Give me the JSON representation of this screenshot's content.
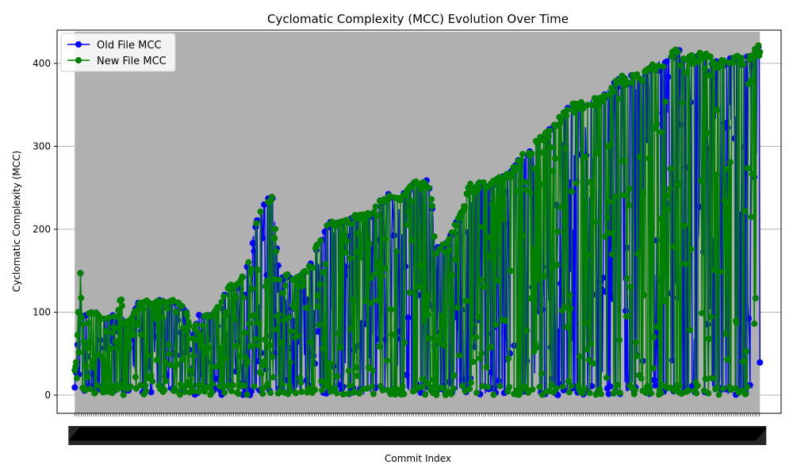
{
  "chart_data": {
    "type": "line",
    "title": "Cyclomatic Complexity (MCC) Evolution Over Time",
    "xlabel": "Commit Index",
    "ylabel": "Cyclomatic Complexity (MCC)",
    "ylim": [
      -22,
      440
    ],
    "xlim": [
      -25,
      1000
    ],
    "y_ticks": [
      0,
      100,
      200,
      300,
      400
    ],
    "grid": "y-axis",
    "legend_position": "top-left",
    "commit_count": 971,
    "series": [
      {
        "name": "Old File MCC",
        "color": "#0000ff",
        "marker": "circle",
        "max_envelope": [
          [
            0,
            30
          ],
          [
            3,
            45
          ],
          [
            6,
            130
          ],
          [
            8,
            148
          ],
          [
            10,
            96
          ],
          [
            20,
            100
          ],
          [
            30,
            102
          ],
          [
            35,
            95
          ],
          [
            45,
            92
          ],
          [
            55,
            97
          ],
          [
            60,
            90
          ],
          [
            65,
            124
          ],
          [
            70,
            88
          ],
          [
            80,
            92
          ],
          [
            90,
            112
          ],
          [
            100,
            115
          ],
          [
            110,
            110
          ],
          [
            120,
            115
          ],
          [
            130,
            112
          ],
          [
            140,
            115
          ],
          [
            150,
            112
          ],
          [
            160,
            97
          ],
          [
            165,
            65
          ],
          [
            175,
            97
          ],
          [
            185,
            97
          ],
          [
            195,
            97
          ],
          [
            205,
            110
          ],
          [
            215,
            128
          ],
          [
            220,
            133
          ],
          [
            230,
            133
          ],
          [
            240,
            148
          ],
          [
            245,
            160
          ],
          [
            250,
            180
          ],
          [
            255,
            200
          ],
          [
            260,
            220
          ],
          [
            265,
            225
          ],
          [
            270,
            235
          ],
          [
            280,
            242
          ],
          [
            290,
            140
          ],
          [
            300,
            148
          ],
          [
            310,
            140
          ],
          [
            320,
            146
          ],
          [
            330,
            155
          ],
          [
            340,
            175
          ],
          [
            345,
            188
          ],
          [
            350,
            190
          ],
          [
            355,
            200
          ],
          [
            360,
            212
          ],
          [
            370,
            208
          ],
          [
            380,
            210
          ],
          [
            390,
            220
          ],
          [
            400,
            217
          ],
          [
            410,
            218
          ],
          [
            420,
            222
          ],
          [
            430,
            235
          ],
          [
            440,
            240
          ],
          [
            450,
            248
          ],
          [
            460,
            238
          ],
          [
            470,
            250
          ],
          [
            480,
            258
          ],
          [
            490,
            256
          ],
          [
            500,
            260
          ],
          [
            505,
            242
          ],
          [
            510,
            180
          ],
          [
            520,
            182
          ],
          [
            530,
            190
          ],
          [
            540,
            210
          ],
          [
            550,
            225
          ],
          [
            560,
            262
          ],
          [
            565,
            250
          ],
          [
            575,
            258
          ],
          [
            585,
            255
          ],
          [
            595,
            260
          ],
          [
            605,
            265
          ],
          [
            615,
            268
          ],
          [
            625,
            280
          ],
          [
            635,
            292
          ],
          [
            645,
            296
          ],
          [
            655,
            310
          ],
          [
            665,
            315
          ],
          [
            675,
            325
          ],
          [
            685,
            335
          ],
          [
            695,
            345
          ],
          [
            705,
            352
          ],
          [
            715,
            355
          ],
          [
            725,
            357
          ],
          [
            735,
            358
          ],
          [
            745,
            360
          ],
          [
            755,
            370
          ],
          [
            765,
            380
          ],
          [
            775,
            385
          ],
          [
            785,
            385
          ],
          [
            795,
            388
          ],
          [
            805,
            390
          ],
          [
            815,
            398
          ],
          [
            825,
            402
          ],
          [
            835,
            406
          ],
          [
            845,
            418
          ],
          [
            855,
            418
          ],
          [
            860,
            410
          ],
          [
            870,
            410
          ],
          [
            880,
            412
          ],
          [
            890,
            414
          ],
          [
            900,
            412
          ],
          [
            910,
            405
          ],
          [
            920,
            405
          ],
          [
            930,
            408
          ],
          [
            940,
            410
          ],
          [
            950,
            408
          ],
          [
            960,
            420
          ],
          [
            970,
            422
          ]
        ],
        "min_envelope": [
          [
            0,
            0
          ],
          [
            970,
            0
          ]
        ]
      },
      {
        "name": "New File MCC",
        "color": "#008000",
        "marker": "circle",
        "max_envelope": [
          [
            0,
            30
          ],
          [
            3,
            45
          ],
          [
            6,
            130
          ],
          [
            8,
            148
          ],
          [
            10,
            96
          ],
          [
            20,
            100
          ],
          [
            30,
            102
          ],
          [
            35,
            95
          ],
          [
            45,
            92
          ],
          [
            55,
            97
          ],
          [
            60,
            90
          ],
          [
            65,
            124
          ],
          [
            70,
            88
          ],
          [
            80,
            92
          ],
          [
            90,
            112
          ],
          [
            100,
            115
          ],
          [
            110,
            110
          ],
          [
            120,
            115
          ],
          [
            130,
            112
          ],
          [
            140,
            115
          ],
          [
            150,
            112
          ],
          [
            160,
            97
          ],
          [
            165,
            65
          ],
          [
            175,
            97
          ],
          [
            185,
            97
          ],
          [
            195,
            97
          ],
          [
            205,
            110
          ],
          [
            215,
            128
          ],
          [
            220,
            133
          ],
          [
            230,
            133
          ],
          [
            240,
            148
          ],
          [
            245,
            160
          ],
          [
            250,
            180
          ],
          [
            255,
            200
          ],
          [
            260,
            220
          ],
          [
            265,
            225
          ],
          [
            270,
            235
          ],
          [
            280,
            242
          ],
          [
            290,
            140
          ],
          [
            300,
            148
          ],
          [
            310,
            140
          ],
          [
            320,
            146
          ],
          [
            330,
            155
          ],
          [
            340,
            175
          ],
          [
            345,
            188
          ],
          [
            350,
            190
          ],
          [
            355,
            200
          ],
          [
            360,
            212
          ],
          [
            370,
            208
          ],
          [
            380,
            210
          ],
          [
            390,
            220
          ],
          [
            400,
            217
          ],
          [
            410,
            218
          ],
          [
            420,
            222
          ],
          [
            430,
            235
          ],
          [
            440,
            240
          ],
          [
            450,
            248
          ],
          [
            460,
            238
          ],
          [
            470,
            250
          ],
          [
            480,
            258
          ],
          [
            490,
            256
          ],
          [
            500,
            260
          ],
          [
            505,
            242
          ],
          [
            510,
            180
          ],
          [
            520,
            182
          ],
          [
            530,
            190
          ],
          [
            540,
            210
          ],
          [
            550,
            225
          ],
          [
            560,
            262
          ],
          [
            565,
            250
          ],
          [
            575,
            258
          ],
          [
            585,
            255
          ],
          [
            595,
            260
          ],
          [
            605,
            265
          ],
          [
            615,
            268
          ],
          [
            625,
            280
          ],
          [
            635,
            292
          ],
          [
            645,
            296
          ],
          [
            655,
            310
          ],
          [
            665,
            315
          ],
          [
            675,
            325
          ],
          [
            685,
            335
          ],
          [
            695,
            345
          ],
          [
            705,
            352
          ],
          [
            715,
            355
          ],
          [
            725,
            357
          ],
          [
            735,
            358
          ],
          [
            745,
            360
          ],
          [
            755,
            370
          ],
          [
            765,
            380
          ],
          [
            775,
            385
          ],
          [
            785,
            385
          ],
          [
            795,
            388
          ],
          [
            805,
            390
          ],
          [
            815,
            398
          ],
          [
            825,
            402
          ],
          [
            835,
            406
          ],
          [
            845,
            418
          ],
          [
            855,
            418
          ],
          [
            860,
            410
          ],
          [
            870,
            410
          ],
          [
            880,
            412
          ],
          [
            890,
            414
          ],
          [
            900,
            412
          ],
          [
            910,
            405
          ],
          [
            920,
            405
          ],
          [
            930,
            408
          ],
          [
            940,
            410
          ],
          [
            950,
            408
          ],
          [
            960,
            420
          ],
          [
            970,
            422
          ]
        ],
        "min_envelope": [
          [
            0,
            0
          ],
          [
            970,
            0
          ]
        ]
      }
    ],
    "colors": {
      "axes_background": "#b0b0b0",
      "grid": "#b0b0b0"
    }
  }
}
